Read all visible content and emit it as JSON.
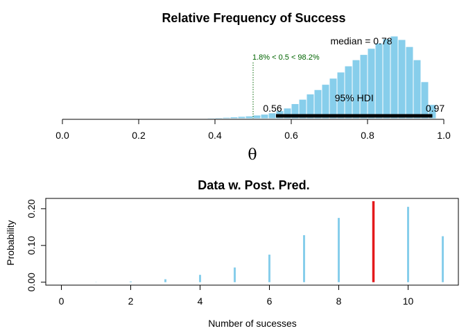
{
  "chart_data": [
    {
      "type": "histogram",
      "title": "Relative Frequency of Success",
      "xlabel": "θ",
      "xlim": [
        0,
        1
      ],
      "xticks": [
        "0.0",
        "0.2",
        "0.4",
        "0.6",
        "0.8",
        "1.0"
      ],
      "xtick_values": [
        0,
        0.2,
        0.4,
        0.6,
        0.8,
        1.0
      ],
      "bin_width": 0.02,
      "bin_start": 0.28,
      "bar_color": "#87CEEB",
      "counts": [
        0.5,
        0.5,
        0.6,
        0.7,
        0.8,
        1,
        1.2,
        1.5,
        2,
        2.5,
        3,
        4,
        5,
        6.5,
        9,
        12,
        17,
        22,
        28,
        33,
        39,
        46,
        53,
        60,
        67,
        73,
        80,
        86,
        91,
        94,
        90,
        82,
        67,
        42,
        16
      ],
      "median_label": "median = 0.78",
      "comp_label": "1.8% < 0.5 < 98.2%",
      "comp_value": 0.5,
      "comp_color": "#006400",
      "hdi_label": "95% HDI",
      "hdi_low": 0.56,
      "hdi_high": 0.97,
      "hdi_low_label": "0.56",
      "hdi_high_label": "0.97"
    },
    {
      "type": "bar",
      "title": "Data w. Post. Pred.",
      "xlabel": "Number of sucesses",
      "ylabel": "Probability",
      "xlim": [
        -0.45,
        11.45
      ],
      "ylim": [
        -0.008,
        0.228
      ],
      "x": [
        0,
        1,
        2,
        3,
        4,
        5,
        6,
        7,
        8,
        9,
        10,
        11
      ],
      "values": [
        0.0002,
        0.0004,
        0.002,
        0.008,
        0.02,
        0.04,
        0.075,
        0.128,
        0.175,
        0.22,
        0.205,
        0.125
      ],
      "xticks": [
        "0",
        "2",
        "4",
        "6",
        "8",
        "10"
      ],
      "xtick_values": [
        0,
        2,
        4,
        6,
        8,
        10
      ],
      "yticks": [
        "0.00",
        "0.10",
        "0.20"
      ],
      "ytick_values": [
        0,
        0.1,
        0.2
      ],
      "bar_color": "#87CEEB",
      "observed": 9,
      "observed_color": "#e41a1c"
    }
  ]
}
